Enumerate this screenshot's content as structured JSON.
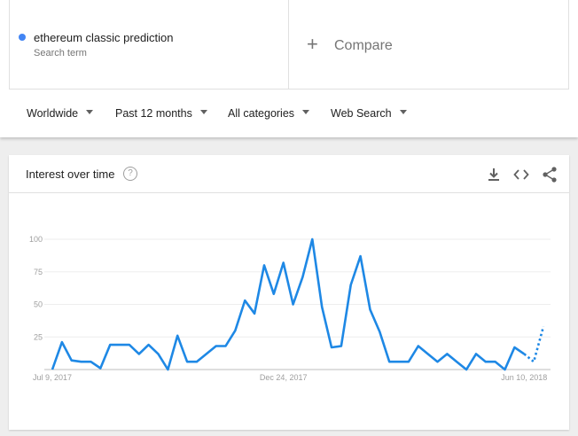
{
  "search": {
    "term": "ethereum classic prediction",
    "term_type": "Search term",
    "term_color": "#4285f4",
    "compare_label": "Compare"
  },
  "filters": {
    "region": "Worldwide",
    "time": "Past 12 months",
    "category": "All categories",
    "search_type": "Web Search"
  },
  "card": {
    "title": "Interest over time",
    "help": "?",
    "icons": [
      "download-icon",
      "embed-icon",
      "share-icon"
    ]
  },
  "chart_data": {
    "type": "line",
    "title": "Interest over time",
    "ylim": [
      0,
      100
    ],
    "y_ticks": [
      "100",
      "75",
      "50",
      "25"
    ],
    "x_tick_labels": [
      "Jul 9, 2017",
      "Dec 24, 2017",
      "Jun 10, 2018"
    ],
    "series_color": "#1e88e5",
    "grid": true,
    "series": [
      {
        "values": [
          0,
          21,
          7,
          6,
          6,
          1,
          19,
          19,
          19,
          12,
          19,
          12,
          0,
          26,
          6,
          6,
          12,
          18,
          18,
          30,
          53,
          43,
          80,
          58,
          82,
          50,
          71,
          100,
          48,
          17,
          18,
          65,
          87,
          46,
          29,
          6,
          6,
          6,
          18,
          12,
          6,
          12,
          6,
          0,
          12,
          6,
          6,
          0,
          17,
          12,
          6,
          33
        ],
        "partial_last_points": 2
      }
    ]
  }
}
